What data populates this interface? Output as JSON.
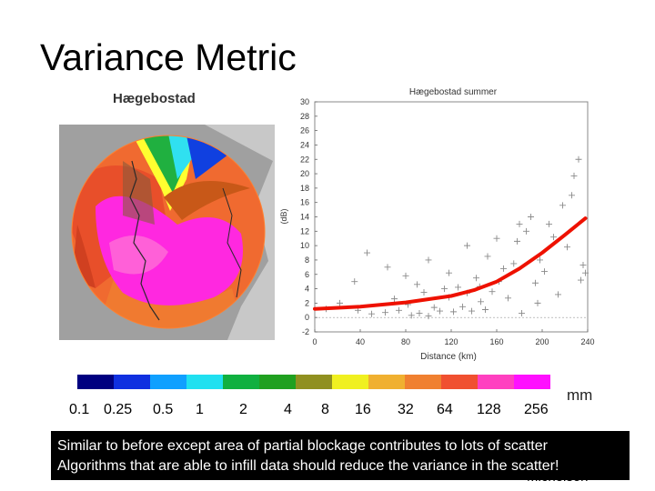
{
  "slide": {
    "title": "Variance Metric",
    "author": "Michelson",
    "caption_lines": [
      "Similar to before except area of partial blockage contributes to lots of scatter",
      "Algorithms that are able to infill data should reduce the variance in the scatter!"
    ]
  },
  "radar_map": {
    "title": "Hægebostad",
    "colorbar": {
      "labels": [
        "0.1",
        "0.25",
        "0.5",
        "1",
        "2",
        "4",
        "8",
        "16",
        "32",
        "64",
        "128",
        "256"
      ],
      "unit": "mm",
      "colors": [
        "#000080",
        "#1030e0",
        "#10a0ff",
        "#20e0f0",
        "#10b040",
        "#20a020",
        "#909020",
        "#f0f020",
        "#f0b030",
        "#f08030",
        "#f05030",
        "#ff40c0",
        "#ff10ff"
      ]
    }
  },
  "chart_data": {
    "type": "scatter",
    "title": "Hægebostad summer",
    "xlabel": "Distance (km)",
    "ylabel": "(dB)",
    "xlim": [
      0,
      240
    ],
    "ylim": [
      -2,
      30
    ],
    "xticks": [
      0,
      40,
      80,
      120,
      160,
      200,
      240
    ],
    "yticks": [
      -2,
      0,
      2,
      4,
      6,
      8,
      10,
      12,
      14,
      16,
      18,
      20,
      22,
      24,
      26,
      28,
      30
    ],
    "grid": false,
    "series": [
      {
        "kind": "points",
        "marker": "+",
        "points": [
          [
            10,
            1.2
          ],
          [
            22,
            2.0
          ],
          [
            38,
            1.0
          ],
          [
            50,
            0.5
          ],
          [
            62,
            0.7
          ],
          [
            70,
            2.6
          ],
          [
            74,
            1.0
          ],
          [
            82,
            1.8
          ],
          [
            85,
            0.3
          ],
          [
            92,
            0.6
          ],
          [
            96,
            3.5
          ],
          [
            100,
            0.2
          ],
          [
            105,
            1.4
          ],
          [
            110,
            0.9
          ],
          [
            114,
            4.0
          ],
          [
            118,
            2.8
          ],
          [
            122,
            0.8
          ],
          [
            126,
            4.2
          ],
          [
            130,
            1.5
          ],
          [
            134,
            3.4
          ],
          [
            138,
            0.9
          ],
          [
            142,
            5.5
          ],
          [
            146,
            2.2
          ],
          [
            150,
            1.1
          ],
          [
            152,
            8.5
          ],
          [
            156,
            3.6
          ],
          [
            162,
            5.0
          ],
          [
            166,
            6.8
          ],
          [
            170,
            2.7
          ],
          [
            175,
            7.5
          ],
          [
            178,
            10.6
          ],
          [
            182,
            0.6
          ],
          [
            186,
            12.0
          ],
          [
            190,
            14.0
          ],
          [
            194,
            4.8
          ],
          [
            198,
            8.0
          ],
          [
            202,
            6.4
          ],
          [
            206,
            13.0
          ],
          [
            210,
            11.2
          ],
          [
            214,
            3.2
          ],
          [
            218,
            15.6
          ],
          [
            222,
            9.8
          ],
          [
            226,
            17.0
          ],
          [
            228,
            19.7
          ],
          [
            232,
            22.0
          ],
          [
            234,
            5.2
          ],
          [
            236,
            7.3
          ],
          [
            238,
            6.2
          ],
          [
            46,
            9.0
          ],
          [
            64,
            7.0
          ],
          [
            80,
            5.8
          ],
          [
            100,
            8.0
          ],
          [
            118,
            6.2
          ],
          [
            134,
            10.0
          ],
          [
            160,
            11.0
          ],
          [
            180,
            13.0
          ],
          [
            35,
            5.0
          ],
          [
            90,
            4.6
          ],
          [
            145,
            4.3
          ],
          [
            196,
            2.0
          ]
        ]
      },
      {
        "kind": "fit-line",
        "color": "#ee1100",
        "points": [
          [
            0,
            1.2
          ],
          [
            40,
            1.5
          ],
          [
            80,
            2.1
          ],
          [
            120,
            3.0
          ],
          [
            140,
            3.8
          ],
          [
            160,
            5.0
          ],
          [
            180,
            6.8
          ],
          [
            200,
            9.0
          ],
          [
            220,
            11.5
          ],
          [
            238,
            13.8
          ]
        ]
      }
    ]
  }
}
